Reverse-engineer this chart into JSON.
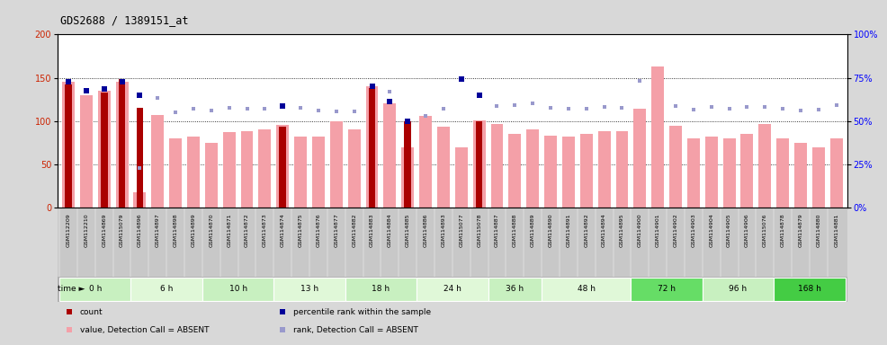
{
  "title": "GDS2688 / 1389151_at",
  "samples": [
    "GSM112209",
    "GSM112210",
    "GSM114869",
    "GSM115079",
    "GSM114896",
    "GSM114897",
    "GSM114898",
    "GSM114899",
    "GSM114870",
    "GSM114871",
    "GSM114872",
    "GSM114873",
    "GSM114874",
    "GSM114875",
    "GSM114876",
    "GSM114877",
    "GSM114882",
    "GSM114883",
    "GSM114884",
    "GSM114885",
    "GSM114886",
    "GSM114893",
    "GSM115077",
    "GSM115078",
    "GSM114887",
    "GSM114888",
    "GSM114889",
    "GSM114890",
    "GSM114891",
    "GSM114892",
    "GSM114894",
    "GSM114895",
    "GSM114900",
    "GSM114901",
    "GSM114902",
    "GSM114903",
    "GSM114904",
    "GSM114905",
    "GSM114906",
    "GSM115076",
    "GSM114878",
    "GSM114879",
    "GSM114880",
    "GSM114881"
  ],
  "time_groups": [
    {
      "label": "0 h",
      "start": 0,
      "end": 4,
      "color": "#c8f0c0"
    },
    {
      "label": "6 h",
      "start": 4,
      "end": 8,
      "color": "#e0f8d8"
    },
    {
      "label": "10 h",
      "start": 8,
      "end": 12,
      "color": "#c8f0c0"
    },
    {
      "label": "13 h",
      "start": 12,
      "end": 16,
      "color": "#e0f8d8"
    },
    {
      "label": "18 h",
      "start": 16,
      "end": 20,
      "color": "#c8f0c0"
    },
    {
      "label": "24 h",
      "start": 20,
      "end": 24,
      "color": "#e0f8d8"
    },
    {
      "label": "36 h",
      "start": 24,
      "end": 27,
      "color": "#c8f0c0"
    },
    {
      "label": "48 h",
      "start": 27,
      "end": 32,
      "color": "#e0f8d8"
    },
    {
      "label": "72 h",
      "start": 32,
      "end": 36,
      "color": "#66dd66"
    },
    {
      "label": "96 h",
      "start": 36,
      "end": 40,
      "color": "#c8f0c0"
    },
    {
      "label": "168 h",
      "start": 40,
      "end": 44,
      "color": "#44cc44"
    }
  ],
  "pink_bars": [
    145,
    130,
    135,
    145,
    18,
    107,
    80,
    82,
    75,
    87,
    88,
    90,
    95,
    82,
    82,
    100,
    90,
    140,
    120,
    70,
    106,
    93,
    70,
    101,
    97,
    85,
    90,
    83,
    82,
    85,
    88,
    88,
    114,
    163,
    94,
    80,
    82,
    80,
    85,
    97,
    80,
    75,
    70,
    80
  ],
  "red_bars": [
    142,
    0,
    133,
    148,
    115,
    0,
    0,
    0,
    0,
    0,
    0,
    0,
    93,
    0,
    0,
    0,
    0,
    138,
    0,
    100,
    0,
    0,
    0,
    100,
    0,
    0,
    0,
    0,
    0,
    0,
    0,
    0,
    0,
    0,
    0,
    0,
    0,
    0,
    0,
    0,
    0,
    0,
    0,
    0
  ],
  "blue_squares": [
    145,
    135,
    137,
    145,
    130,
    0,
    0,
    0,
    0,
    0,
    0,
    0,
    117,
    0,
    0,
    0,
    0,
    140,
    122,
    100,
    0,
    0,
    148,
    130,
    0,
    0,
    0,
    0,
    0,
    0,
    0,
    0,
    0,
    0,
    0,
    0,
    0,
    0,
    0,
    0,
    0,
    0,
    0,
    0
  ],
  "light_blue_squares": [
    0,
    0,
    0,
    0,
    46,
    127,
    110,
    114,
    112,
    115,
    114,
    114,
    0,
    115,
    112,
    111,
    111,
    0,
    134,
    0,
    106,
    114,
    0,
    0,
    117,
    118,
    120,
    115,
    114,
    114,
    116,
    115,
    146,
    0,
    117,
    113,
    116,
    114,
    116,
    116,
    114,
    112,
    113,
    118
  ],
  "ylim_left": [
    0,
    200
  ],
  "yticks_left": [
    0,
    50,
    100,
    150,
    200
  ],
  "yticks_right": [
    0,
    25,
    50,
    75,
    100
  ],
  "ytick_labels_right": [
    "0%",
    "25%",
    "50%",
    "75%",
    "100%"
  ],
  "pink_bar_color": "#f4a0a8",
  "red_bar_color": "#aa0000",
  "blue_sq_color": "#000099",
  "light_blue_sq_color": "#9999cc",
  "grid_color": "black",
  "legend_items": [
    {
      "color": "#aa0000",
      "label": "count"
    },
    {
      "color": "#000099",
      "label": "percentile rank within the sample"
    },
    {
      "color": "#f4a0a8",
      "label": "value, Detection Call = ABSENT"
    },
    {
      "color": "#9999cc",
      "label": "rank, Detection Call = ABSENT"
    }
  ]
}
